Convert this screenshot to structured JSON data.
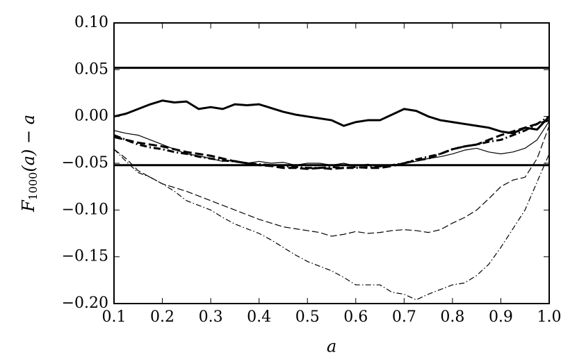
{
  "chart_data": {
    "type": "line",
    "xlabel": "a",
    "ylabel": {
      "main": "F",
      "sub": "1000",
      "rest": "(a) − a"
    },
    "xlim": [
      0.1,
      1.0
    ],
    "ylim": [
      -0.2,
      0.1
    ],
    "xticks": [
      0.1,
      0.2,
      0.3,
      0.4,
      0.5,
      0.6,
      0.7,
      0.8,
      0.9,
      {
        "value": 1.0,
        "label": "1.0"
      }
    ],
    "yticks": [
      {
        "value": 0.1,
        "label": "0.10"
      },
      {
        "value": 0.05,
        "label": "0.05"
      },
      {
        "value": 0,
        "label": "0.00"
      },
      {
        "value": -0.05,
        "label": "−0.05"
      },
      {
        "value": -0.1,
        "label": "−0.10"
      },
      {
        "value": -0.15,
        "label": "−0.15"
      },
      {
        "value": -0.2,
        "label": "−0.20"
      }
    ],
    "hlines": [
      0.052,
      -0.052
    ],
    "x": [
      0.1,
      0.125,
      0.15,
      0.175,
      0.2,
      0.225,
      0.25,
      0.275,
      0.3,
      0.325,
      0.35,
      0.375,
      0.4,
      0.425,
      0.45,
      0.475,
      0.5,
      0.525,
      0.55,
      0.575,
      0.6,
      0.625,
      0.65,
      0.675,
      0.7,
      0.725,
      0.75,
      0.775,
      0.8,
      0.825,
      0.85,
      0.875,
      0.9,
      0.925,
      0.95,
      0.975,
      1.0
    ],
    "series": [
      {
        "color": "#000000",
        "width": 3,
        "dash": "solid",
        "values": [
          0,
          0.003,
          0.008,
          0.013,
          0.017,
          0.015,
          0.016,
          0.008,
          0.01,
          0.008,
          0.013,
          0.012,
          0.013,
          0.009,
          0.005,
          0.002,
          0.0,
          -0.002,
          -0.004,
          -0.01,
          -0.006,
          -0.004,
          -0.004,
          0.002,
          0.008,
          0.006,
          0.0,
          -0.004,
          -0.006,
          -0.008,
          -0.01,
          -0.012,
          -0.016,
          -0.018,
          -0.012,
          -0.014,
          0.0
        ]
      },
      {
        "color": "#000000",
        "width": 1.2,
        "dash": "solid",
        "values": [
          -0.015,
          -0.018,
          -0.02,
          -0.025,
          -0.03,
          -0.035,
          -0.04,
          -0.042,
          -0.045,
          -0.048,
          -0.047,
          -0.05,
          -0.048,
          -0.05,
          -0.049,
          -0.052,
          -0.05,
          -0.05,
          -0.052,
          -0.05,
          -0.053,
          -0.051,
          -0.054,
          -0.052,
          -0.05,
          -0.048,
          -0.045,
          -0.043,
          -0.04,
          -0.036,
          -0.034,
          -0.038,
          -0.04,
          -0.038,
          -0.034,
          -0.025,
          -0.005
        ]
      },
      {
        "color": "#000000",
        "width": 3,
        "dash": "dashed",
        "values": [
          -0.022,
          -0.025,
          -0.028,
          -0.03,
          -0.032,
          -0.035,
          -0.038,
          -0.04,
          -0.042,
          -0.045,
          -0.048,
          -0.05,
          -0.052,
          -0.053,
          -0.055,
          -0.055,
          -0.056,
          -0.055,
          -0.056,
          -0.055,
          -0.054,
          -0.055,
          -0.055,
          -0.053,
          -0.05,
          -0.047,
          -0.045,
          -0.04,
          -0.035,
          -0.032,
          -0.03,
          -0.025,
          -0.02,
          -0.016,
          -0.012,
          -0.008,
          -0.004
        ]
      },
      {
        "color": "#000000",
        "width": 3,
        "dash": "dashdot",
        "values": [
          -0.02,
          -0.025,
          -0.03,
          -0.033,
          -0.035,
          -0.038,
          -0.04,
          -0.043,
          -0.045,
          -0.047,
          -0.048,
          -0.05,
          -0.051,
          -0.052,
          -0.053,
          -0.054,
          -0.055,
          -0.055,
          -0.054,
          -0.055,
          -0.055,
          -0.054,
          -0.053,
          -0.052,
          -0.05,
          -0.046,
          -0.043,
          -0.04,
          -0.035,
          -0.032,
          -0.03,
          -0.027,
          -0.025,
          -0.02,
          -0.015,
          -0.008,
          0.0
        ]
      },
      {
        "color": "#000000",
        "width": 1.2,
        "dash": "dashed",
        "values": [
          -0.035,
          -0.045,
          -0.058,
          -0.065,
          -0.072,
          -0.076,
          -0.08,
          -0.085,
          -0.09,
          -0.095,
          -0.1,
          -0.105,
          -0.11,
          -0.114,
          -0.118,
          -0.12,
          -0.122,
          -0.124,
          -0.128,
          -0.126,
          -0.123,
          -0.125,
          -0.124,
          -0.122,
          -0.121,
          -0.122,
          -0.124,
          -0.121,
          -0.114,
          -0.108,
          -0.1,
          -0.088,
          -0.075,
          -0.068,
          -0.065,
          -0.045,
          -0.01
        ]
      },
      {
        "color": "#000000",
        "width": 1.2,
        "dash": "dashdot",
        "values": [
          -0.035,
          -0.048,
          -0.06,
          -0.065,
          -0.072,
          -0.08,
          -0.09,
          -0.095,
          -0.1,
          -0.108,
          -0.115,
          -0.12,
          -0.125,
          -0.132,
          -0.14,
          -0.148,
          -0.155,
          -0.16,
          -0.165,
          -0.172,
          -0.18,
          -0.18,
          -0.18,
          -0.188,
          -0.19,
          -0.196,
          -0.19,
          -0.185,
          -0.18,
          -0.178,
          -0.17,
          -0.158,
          -0.14,
          -0.12,
          -0.1,
          -0.07,
          -0.04
        ]
      }
    ]
  }
}
